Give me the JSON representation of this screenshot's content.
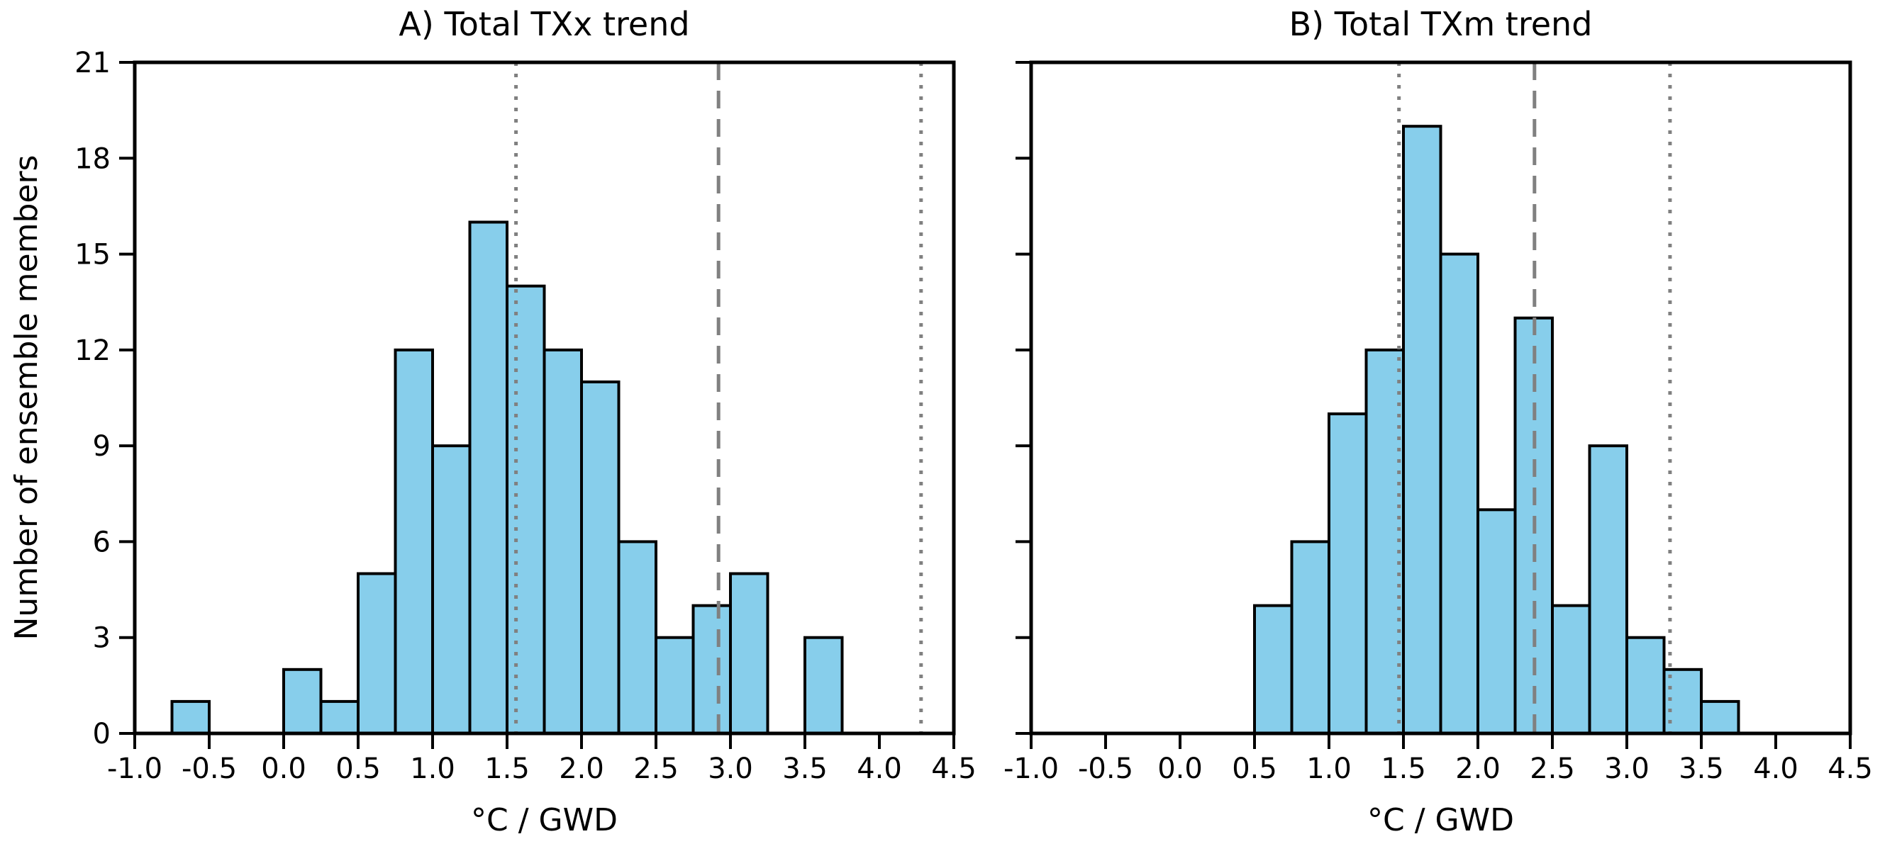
{
  "figure": {
    "background": "#ffffff",
    "ylabel": "Number of ensemble members",
    "xlabel": "°C / GWD"
  },
  "colors": {
    "bar_fill": "#87CEEB",
    "bar_edge": "#000000",
    "reference_line": "#808080",
    "axis": "#000000",
    "text": "#000000",
    "background": "#ffffff"
  },
  "chart_data": [
    {
      "type": "bar",
      "title": "A) Total TXx trend",
      "xlabel": "°C / GWD",
      "ylabel": "Number of ensemble members",
      "bin_start": -0.75,
      "bin_width": 0.25,
      "counts": [
        1,
        0,
        0,
        2,
        1,
        5,
        12,
        9,
        16,
        14,
        12,
        11,
        6,
        3,
        4,
        5,
        0,
        3
      ],
      "bin_edges": [
        -0.75,
        -0.5,
        -0.25,
        0.0,
        0.25,
        0.5,
        0.75,
        1.0,
        1.25,
        1.5,
        1.75,
        2.0,
        2.25,
        2.5,
        2.75,
        3.0,
        3.25,
        3.5,
        3.75
      ],
      "xlim": [
        -1.0,
        4.5
      ],
      "ylim": [
        0,
        21
      ],
      "x_tick_labels": [
        "-1.0",
        "-0.5",
        "0.0",
        "0.5",
        "1.0",
        "1.5",
        "2.0",
        "2.5",
        "3.0",
        "3.5",
        "4.0",
        "4.5"
      ],
      "y_tick_labels": [
        "0",
        "3",
        "6",
        "9",
        "12",
        "15",
        "18",
        "21"
      ],
      "show_y_tick_labels": true,
      "grid": false,
      "legend": null,
      "vlines": [
        {
          "x": 1.56,
          "style": "dotted"
        },
        {
          "x": 2.92,
          "style": "dashed"
        },
        {
          "x": 4.28,
          "style": "dotted"
        }
      ]
    },
    {
      "type": "bar",
      "title": "B) Total TXm trend",
      "xlabel": "°C / GWD",
      "ylabel": "",
      "bin_start": 0.5,
      "bin_width": 0.25,
      "counts": [
        4,
        6,
        10,
        12,
        19,
        15,
        7,
        13,
        4,
        9,
        3,
        2,
        1
      ],
      "bin_edges": [
        0.5,
        0.75,
        1.0,
        1.25,
        1.5,
        1.75,
        2.0,
        2.25,
        2.5,
        2.75,
        3.0,
        3.25,
        3.5,
        3.75
      ],
      "xlim": [
        -1.0,
        4.5
      ],
      "ylim": [
        0,
        21
      ],
      "x_tick_labels": [
        "-1.0",
        "-0.5",
        "0.0",
        "0.5",
        "1.0",
        "1.5",
        "2.0",
        "2.5",
        "3.0",
        "3.5",
        "4.0",
        "4.5"
      ],
      "y_tick_labels": [
        "0",
        "3",
        "6",
        "9",
        "12",
        "15",
        "18",
        "21"
      ],
      "show_y_tick_labels": false,
      "grid": false,
      "legend": null,
      "vlines": [
        {
          "x": 1.47,
          "style": "dotted"
        },
        {
          "x": 2.38,
          "style": "dashed"
        },
        {
          "x": 3.29,
          "style": "dotted"
        }
      ]
    }
  ]
}
